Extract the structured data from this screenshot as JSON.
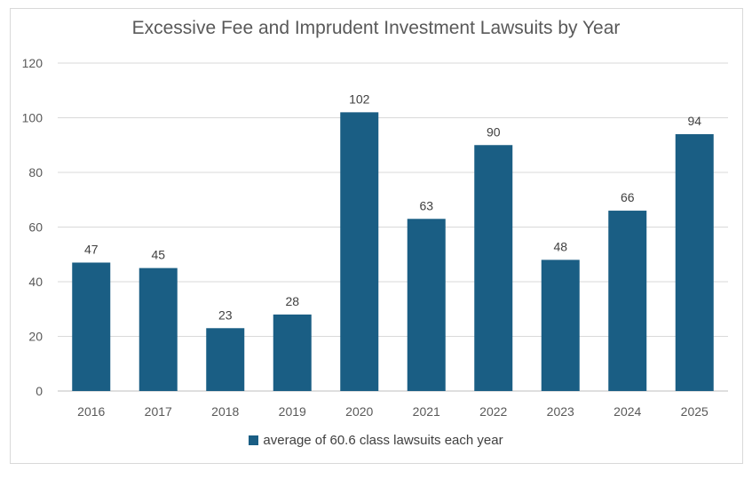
{
  "chart_data": {
    "type": "bar",
    "title": "Excessive Fee and Imprudent Investment Lawsuits by Year",
    "categories": [
      "2016",
      "2017",
      "2018",
      "2019",
      "2020",
      "2021",
      "2022",
      "2023",
      "2024",
      "2025"
    ],
    "series": [
      {
        "name": "average of 60.6 class lawsuits each year",
        "values": [
          47,
          45,
          23,
          28,
          102,
          63,
          90,
          48,
          66,
          94
        ]
      }
    ],
    "xlabel": "",
    "ylabel": "",
    "ylim": [
      0,
      120
    ],
    "yticks": [
      0,
      20,
      40,
      60,
      80,
      100,
      120
    ],
    "grid": true,
    "data_labels": true,
    "legend_position": "bottom",
    "color": "#1a5e84"
  }
}
